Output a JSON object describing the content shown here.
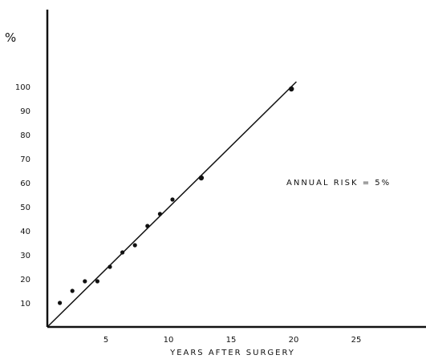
{
  "chart_data": {
    "type": "scatter",
    "title": "",
    "xlabel": "YEARS AFTER SURGERY",
    "ylabel": "%",
    "xlim": [
      0,
      30
    ],
    "ylim": [
      0,
      105
    ],
    "grid": false,
    "xticks": [
      5,
      10,
      15,
      20,
      25
    ],
    "yticks": [
      10,
      20,
      30,
      40,
      50,
      60,
      70,
      80,
      90,
      100
    ],
    "x_tick_labels": [
      "5",
      "10",
      "15",
      "20",
      "25"
    ],
    "y_tick_labels": [
      "10",
      "20",
      "30",
      "40",
      "50",
      "60",
      "70",
      "80",
      "90",
      "100"
    ],
    "annotation": "ANNUAL RISK = 5%",
    "fit_line": {
      "x": [
        0,
        19.9
      ],
      "y": [
        0,
        102
      ]
    },
    "points": [
      {
        "x": 1,
        "y": 10
      },
      {
        "x": 2,
        "y": 15
      },
      {
        "x": 3,
        "y": 19
      },
      {
        "x": 4,
        "y": 19
      },
      {
        "x": 5,
        "y": 25
      },
      {
        "x": 6,
        "y": 31
      },
      {
        "x": 7,
        "y": 34
      },
      {
        "x": 8,
        "y": 42
      },
      {
        "x": 9,
        "y": 47
      },
      {
        "x": 10,
        "y": 53
      },
      {
        "x": 12.3,
        "y": 62
      },
      {
        "x": 19.5,
        "y": 99
      }
    ]
  }
}
